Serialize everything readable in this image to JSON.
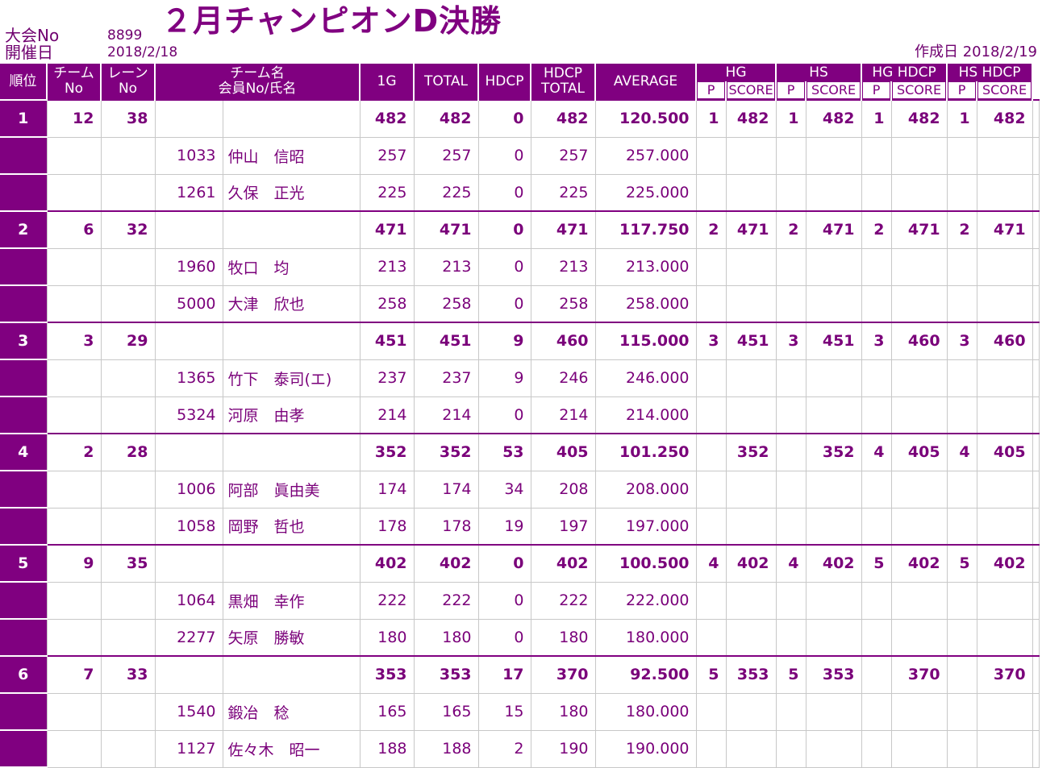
{
  "header": {
    "taikai_label": "大会No",
    "taikai_no": "8899",
    "kaisai_label": "開催日",
    "kaisai_date": "2018/2/18",
    "title": "２月チャンピオンD決勝",
    "sakusei": "作成日 2018/2/19"
  },
  "columns": {
    "rank": "順位",
    "team_no_1": "チーム",
    "team_no_2": "No",
    "lane_no_1": "レーン",
    "lane_no_2": "No",
    "name_1": "チーム名",
    "name_2": "会員No/氏名",
    "g1": "1G",
    "total": "TOTAL",
    "hdcp": "HDCP",
    "hdcp_total_1": "HDCP",
    "hdcp_total_2": "TOTAL",
    "average": "AVERAGE",
    "hg": "HG",
    "hs": "HS",
    "hg_hdcp": "HG HDCP",
    "hs_hdcp": "HS HDCP",
    "p": "P",
    "score": "SCORE"
  },
  "teams": [
    {
      "rank": "1",
      "team_no": "12",
      "lane_no": "38",
      "g1": "482",
      "total": "482",
      "hdcp": "0",
      "hdcp_total": "482",
      "average": "120.500",
      "hg_p": "1",
      "hg_score": "482",
      "hs_p": "1",
      "hs_score": "482",
      "hgh_p": "1",
      "hgh_score": "482",
      "hsh_p": "1",
      "hsh_score": "482",
      "members": [
        {
          "no": "1033",
          "name": "仲山　信昭",
          "g1": "257",
          "total": "257",
          "hdcp": "0",
          "hdcp_total": "257",
          "average": "257.000"
        },
        {
          "no": "1261",
          "name": "久保　正光",
          "g1": "225",
          "total": "225",
          "hdcp": "0",
          "hdcp_total": "225",
          "average": "225.000"
        }
      ]
    },
    {
      "rank": "2",
      "team_no": "6",
      "lane_no": "32",
      "g1": "471",
      "total": "471",
      "hdcp": "0",
      "hdcp_total": "471",
      "average": "117.750",
      "hg_p": "2",
      "hg_score": "471",
      "hs_p": "2",
      "hs_score": "471",
      "hgh_p": "2",
      "hgh_score": "471",
      "hsh_p": "2",
      "hsh_score": "471",
      "members": [
        {
          "no": "1960",
          "name": "牧口　均",
          "g1": "213",
          "total": "213",
          "hdcp": "0",
          "hdcp_total": "213",
          "average": "213.000"
        },
        {
          "no": "5000",
          "name": "大津　欣也",
          "g1": "258",
          "total": "258",
          "hdcp": "0",
          "hdcp_total": "258",
          "average": "258.000"
        }
      ]
    },
    {
      "rank": "3",
      "team_no": "3",
      "lane_no": "29",
      "g1": "451",
      "total": "451",
      "hdcp": "9",
      "hdcp_total": "460",
      "average": "115.000",
      "hg_p": "3",
      "hg_score": "451",
      "hs_p": "3",
      "hs_score": "451",
      "hgh_p": "3",
      "hgh_score": "460",
      "hsh_p": "3",
      "hsh_score": "460",
      "members": [
        {
          "no": "1365",
          "name": "竹下　泰司(エ)",
          "g1": "237",
          "total": "237",
          "hdcp": "9",
          "hdcp_total": "246",
          "average": "246.000"
        },
        {
          "no": "5324",
          "name": "河原　由孝",
          "g1": "214",
          "total": "214",
          "hdcp": "0",
          "hdcp_total": "214",
          "average": "214.000"
        }
      ]
    },
    {
      "rank": "4",
      "team_no": "2",
      "lane_no": "28",
      "g1": "352",
      "total": "352",
      "hdcp": "53",
      "hdcp_total": "405",
      "average": "101.250",
      "hg_p": "",
      "hg_score": "352",
      "hs_p": "",
      "hs_score": "352",
      "hgh_p": "4",
      "hgh_score": "405",
      "hsh_p": "4",
      "hsh_score": "405",
      "members": [
        {
          "no": "1006",
          "name": "阿部　眞由美",
          "g1": "174",
          "total": "174",
          "hdcp": "34",
          "hdcp_total": "208",
          "average": "208.000"
        },
        {
          "no": "1058",
          "name": "岡野　哲也",
          "g1": "178",
          "total": "178",
          "hdcp": "19",
          "hdcp_total": "197",
          "average": "197.000"
        }
      ]
    },
    {
      "rank": "5",
      "team_no": "9",
      "lane_no": "35",
      "g1": "402",
      "total": "402",
      "hdcp": "0",
      "hdcp_total": "402",
      "average": "100.500",
      "hg_p": "4",
      "hg_score": "402",
      "hs_p": "4",
      "hs_score": "402",
      "hgh_p": "5",
      "hgh_score": "402",
      "hsh_p": "5",
      "hsh_score": "402",
      "members": [
        {
          "no": "1064",
          "name": "黒畑　幸作",
          "g1": "222",
          "total": "222",
          "hdcp": "0",
          "hdcp_total": "222",
          "average": "222.000"
        },
        {
          "no": "2277",
          "name": "矢原　勝敏",
          "g1": "180",
          "total": "180",
          "hdcp": "0",
          "hdcp_total": "180",
          "average": "180.000"
        }
      ]
    },
    {
      "rank": "6",
      "team_no": "7",
      "lane_no": "33",
      "g1": "353",
      "total": "353",
      "hdcp": "17",
      "hdcp_total": "370",
      "average": "92.500",
      "hg_p": "5",
      "hg_score": "353",
      "hs_p": "5",
      "hs_score": "353",
      "hgh_p": "",
      "hgh_score": "370",
      "hsh_p": "",
      "hsh_score": "370",
      "members": [
        {
          "no": "1540",
          "name": "鍛冶　稔",
          "g1": "165",
          "total": "165",
          "hdcp": "15",
          "hdcp_total": "180",
          "average": "180.000"
        },
        {
          "no": "1127",
          "name": "佐々木　昭一",
          "g1": "188",
          "total": "188",
          "hdcp": "2",
          "hdcp_total": "190",
          "average": "190.000"
        }
      ]
    }
  ]
}
